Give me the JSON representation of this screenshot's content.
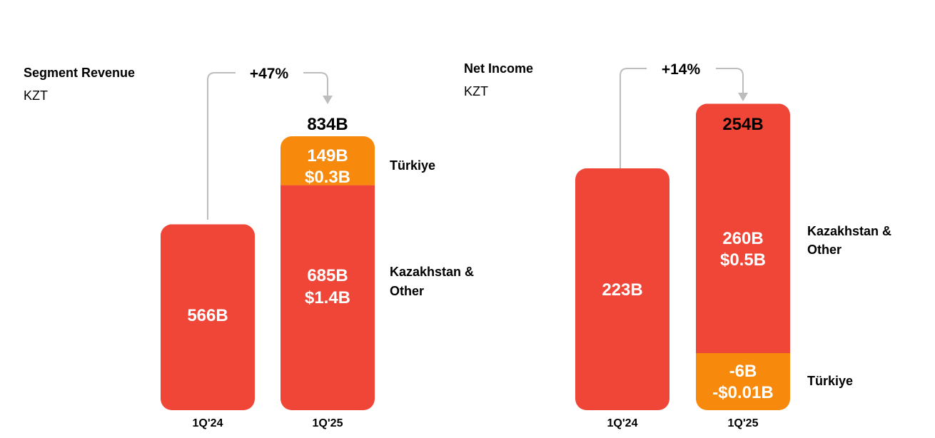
{
  "colors": {
    "red": "#f04637",
    "orange": "#f7890c",
    "connector": "#bdbdbd"
  },
  "chart_data": [
    {
      "type": "bar",
      "title": "Segment Revenue",
      "subtitle": "KZT",
      "change_label": "+47%",
      "categories": [
        "1Q'24",
        "1Q'25"
      ],
      "totals": [
        566,
        834
      ],
      "total_labels": [
        "",
        "834B"
      ],
      "series": [
        {
          "name": "Kazakhstan & Other",
          "values": [
            566,
            685
          ],
          "labels": [
            "566B",
            "685B"
          ],
          "sub_labels": [
            "",
            "$1.4B"
          ],
          "color": "#f04637"
        },
        {
          "name": "Türkiye",
          "values": [
            0,
            149
          ],
          "labels": [
            "",
            "149B"
          ],
          "sub_labels": [
            "",
            "$0.3B"
          ],
          "color": "#f7890c"
        }
      ]
    },
    {
      "type": "bar",
      "title": "Net Income",
      "subtitle": "KZT",
      "change_label": "+14%",
      "categories": [
        "1Q'24",
        "1Q'25"
      ],
      "totals": [
        223,
        254
      ],
      "total_labels": [
        "",
        "254B"
      ],
      "series": [
        {
          "name": "Kazakhstan & Other",
          "values": [
            223,
            260
          ],
          "labels": [
            "223B",
            "260B"
          ],
          "sub_labels": [
            "",
            "$0.5B"
          ],
          "color": "#f04637"
        },
        {
          "name": "Türkiye",
          "values": [
            0,
            -6
          ],
          "labels": [
            "",
            "-6B"
          ],
          "sub_labels": [
            "",
            "-$0.01B"
          ],
          "color": "#f7890c"
        }
      ]
    }
  ]
}
